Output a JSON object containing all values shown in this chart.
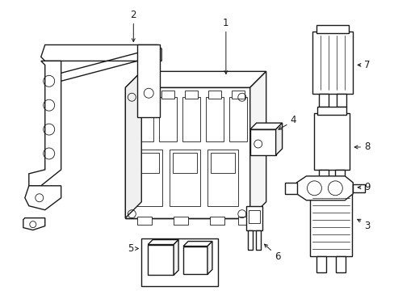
{
  "bg": "#ffffff",
  "lc": "#1a1a1a",
  "lw": 1.0,
  "tlw": 0.6,
  "fs": 8.5,
  "figsize": [
    4.89,
    3.6
  ],
  "dpi": 100
}
